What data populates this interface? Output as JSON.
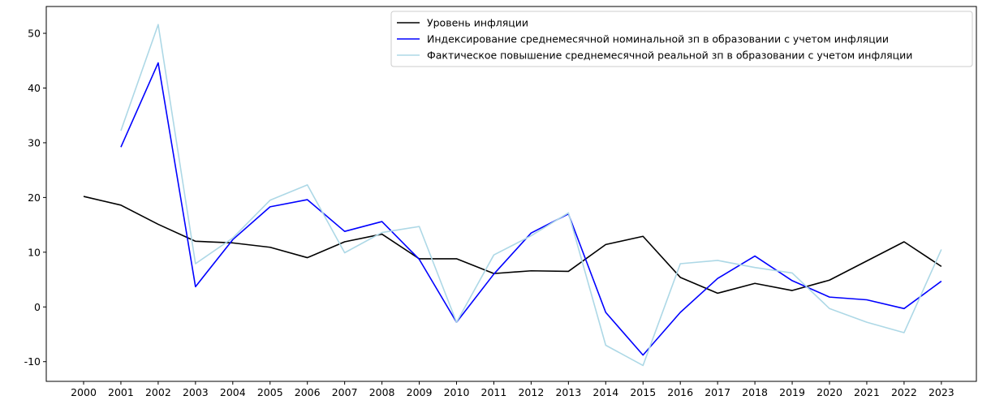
{
  "chart_data": {
    "type": "line",
    "title": "",
    "xlabel": "",
    "ylabel": "",
    "x": [
      "2000",
      "2001",
      "2002",
      "2003",
      "2004",
      "2005",
      "2006",
      "2007",
      "2008",
      "2009",
      "2010",
      "2011",
      "2012",
      "2013",
      "2014",
      "2015",
      "2016",
      "2017",
      "2018",
      "2019",
      "2020",
      "2021",
      "2022",
      "2023"
    ],
    "ylim": [
      -13.6,
      54.9
    ],
    "yticks": [
      -10,
      0,
      10,
      20,
      30,
      40,
      50
    ],
    "grid": false,
    "legend_position": "top-right",
    "series": [
      {
        "name": "Уровень инфляции",
        "color": "#000000",
        "values": [
          20.2,
          18.6,
          15.1,
          12.0,
          11.7,
          10.9,
          9.0,
          11.9,
          13.3,
          8.8,
          8.8,
          6.1,
          6.6,
          6.5,
          11.4,
          12.9,
          5.4,
          2.5,
          4.3,
          3.0,
          4.9,
          8.4,
          11.9,
          7.4
        ]
      },
      {
        "name": "Индексирование среднемесячной номинальной зп в образовании с учетом инфляции",
        "color": "#0000ff",
        "values": [
          null,
          29.2,
          44.6,
          3.7,
          12.3,
          18.3,
          19.6,
          13.8,
          15.6,
          8.7,
          -2.8,
          6.0,
          13.5,
          17.0,
          -1.0,
          -8.8,
          -1.0,
          5.2,
          9.3,
          4.8,
          1.8,
          1.3,
          -0.3,
          4.7
        ]
      },
      {
        "name": "Фактическое повышение среднемесячной реальной зп в образовании с учетом инфляции",
        "color": "#add8e6",
        "values": [
          null,
          32.2,
          51.6,
          7.9,
          12.6,
          19.5,
          22.3,
          9.9,
          13.6,
          14.7,
          -2.8,
          9.5,
          13.0,
          17.2,
          -7.0,
          -10.7,
          7.9,
          8.5,
          7.2,
          6.2,
          -0.3,
          -2.8,
          -4.7,
          10.5
        ]
      }
    ]
  }
}
